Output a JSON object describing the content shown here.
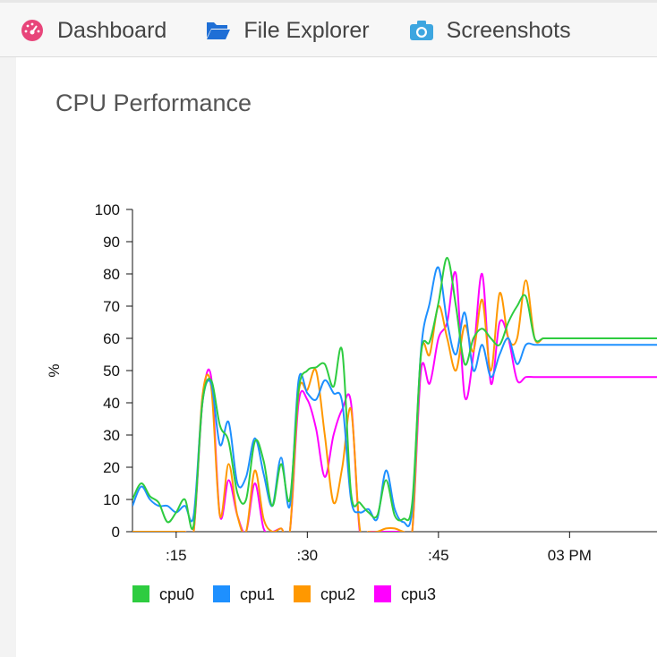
{
  "nav": {
    "tabs": [
      {
        "label": "Dashboard",
        "icon": "dashboard-gauge-icon",
        "color": "#e8457a"
      },
      {
        "label": "File Explorer",
        "icon": "folder-open-icon",
        "color": "#1f6fd6"
      },
      {
        "label": "Screenshots",
        "icon": "camera-icon",
        "color": "#3da6e0"
      }
    ]
  },
  "panel": {
    "title": "CPU Performance"
  },
  "chart_data": {
    "type": "line",
    "title": "CPU Performance",
    "ylabel": "%",
    "xlabel": "",
    "ylim": [
      0,
      100
    ],
    "yticks": [
      0,
      10,
      20,
      30,
      40,
      50,
      60,
      70,
      80,
      90,
      100
    ],
    "xlim": [
      10,
      70
    ],
    "xticks": [
      {
        "value": 15,
        "label": ":15"
      },
      {
        "value": 30,
        "label": ":30"
      },
      {
        "value": 45,
        "label": ":45"
      },
      {
        "value": 60,
        "label": "03 PM"
      }
    ],
    "legend_position": "bottom-left",
    "x": [
      10,
      11,
      12,
      13,
      14,
      15,
      16,
      17,
      18,
      19,
      20,
      21,
      22,
      23,
      24,
      25,
      26,
      27,
      28,
      29,
      30,
      31,
      32,
      33,
      34,
      35,
      36,
      37,
      38,
      39,
      40,
      41,
      42,
      43,
      44,
      45,
      46,
      47,
      48,
      49,
      50,
      51,
      52,
      53,
      54,
      55,
      56,
      57,
      58,
      59,
      60,
      61,
      62,
      63,
      64,
      65,
      66,
      67,
      68,
      69,
      70
    ],
    "series": [
      {
        "name": "cpu0",
        "color": "#2ecc40",
        "values": [
          10,
          15,
          11,
          9,
          3,
          6,
          10,
          2,
          40,
          47,
          33,
          28,
          12,
          10,
          28,
          22,
          8,
          21,
          10,
          44,
          50,
          51,
          52,
          45,
          56,
          12,
          9,
          6,
          5,
          16,
          5,
          4,
          9,
          55,
          59,
          71,
          85,
          70,
          52,
          60,
          63,
          60,
          58,
          65,
          70,
          73,
          60,
          60,
          60,
          60,
          60,
          60,
          60,
          60,
          60,
          60,
          60,
          60,
          60,
          60,
          60
        ]
      },
      {
        "name": "cpu1",
        "color": "#1e90ff",
        "values": [
          8,
          14,
          10,
          8,
          8,
          6,
          8,
          5,
          40,
          46,
          27,
          34,
          15,
          17,
          29,
          18,
          8,
          23,
          8,
          47,
          43,
          41,
          47,
          43,
          40,
          10,
          6,
          7,
          4,
          19,
          7,
          3,
          7,
          56,
          71,
          82,
          65,
          55,
          68,
          50,
          58,
          48,
          55,
          60,
          52,
          58,
          58,
          58,
          58,
          58,
          58,
          58,
          58,
          58,
          58,
          58,
          58,
          58,
          58,
          58,
          58
        ]
      },
      {
        "name": "cpu2",
        "color": "#ff9800",
        "values": [
          0,
          0,
          0,
          0,
          0,
          0,
          0,
          0,
          42,
          45,
          5,
          21,
          5,
          0,
          19,
          4,
          0,
          1,
          0,
          43,
          44,
          50,
          30,
          9,
          20,
          38,
          1,
          0,
          0,
          1,
          1,
          0,
          0,
          55,
          55,
          70,
          60,
          50,
          64,
          56,
          72,
          50,
          74,
          60,
          60,
          78,
          60,
          60,
          60,
          60,
          60,
          60,
          60,
          60,
          60,
          60,
          60,
          60,
          60,
          60,
          60
        ]
      },
      {
        "name": "cpu3",
        "color": "#ff00ff",
        "values": [
          0,
          0,
          0,
          0,
          0,
          0,
          0,
          0,
          40,
          48,
          5,
          16,
          5,
          0,
          15,
          1,
          0,
          1,
          0,
          40,
          41,
          32,
          17,
          30,
          38,
          40,
          0,
          0,
          0,
          0,
          0,
          0,
          0,
          50,
          46,
          60,
          65,
          80,
          42,
          55,
          80,
          46,
          65,
          60,
          47,
          48,
          48,
          48,
          48,
          48,
          48,
          48,
          48,
          48,
          48,
          48,
          48,
          48,
          48,
          48,
          48
        ]
      }
    ]
  }
}
